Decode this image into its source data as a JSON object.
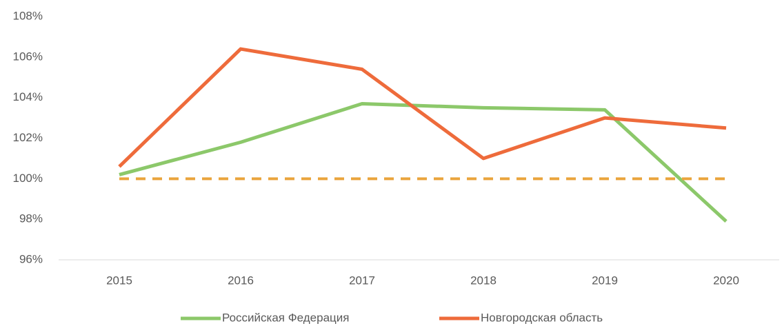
{
  "chart_data": {
    "type": "line",
    "categories": [
      "2015",
      "2016",
      "2017",
      "2018",
      "2019",
      "2020"
    ],
    "series": [
      {
        "name": "Российская Федерация",
        "color": "#8cc86a",
        "values": [
          100.2,
          101.8,
          103.7,
          103.5,
          103.4,
          97.9
        ]
      },
      {
        "name": "Новгородская область",
        "color": "#ee6b3b",
        "values": [
          100.6,
          106.4,
          105.4,
          101.0,
          103.0,
          102.5
        ]
      },
      {
        "color": "#eaa43c",
        "dashed": true,
        "values": [
          100,
          100,
          100,
          100,
          100,
          100
        ]
      }
    ],
    "ylim": [
      96,
      108
    ],
    "yticks": [
      {
        "value": 96,
        "label": "96%"
      },
      {
        "value": 98,
        "label": "98%"
      },
      {
        "value": 100,
        "label": "100%"
      },
      {
        "value": 102,
        "label": "102%"
      },
      {
        "value": 104,
        "label": "104%"
      },
      {
        "value": 106,
        "label": "106%"
      },
      {
        "value": 108,
        "label": "108%"
      }
    ],
    "grid": false,
    "legend": "bottom"
  }
}
